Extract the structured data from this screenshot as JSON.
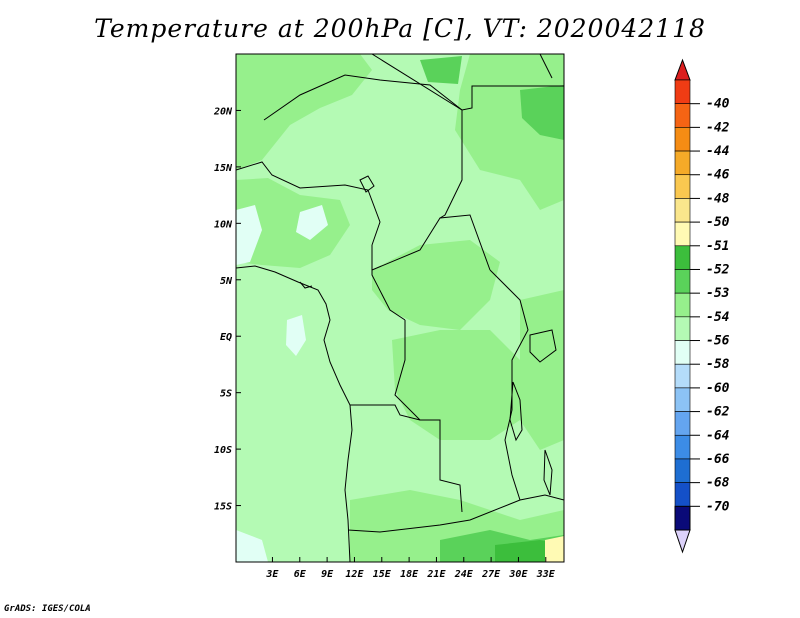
{
  "title": "Temperature at 200hPa [C], VT: 2020042118",
  "credit": "GrADS: IGES/COLA",
  "map": {
    "lon_range": [
      -1,
      35
    ],
    "lat_range": [
      -20,
      25
    ],
    "x_ticks": [
      {
        "value": 3,
        "label": "3E"
      },
      {
        "value": 6,
        "label": "6E"
      },
      {
        "value": 9,
        "label": "9E"
      },
      {
        "value": 12,
        "label": "12E"
      },
      {
        "value": 15,
        "label": "15E"
      },
      {
        "value": 18,
        "label": "18E"
      },
      {
        "value": 21,
        "label": "21E"
      },
      {
        "value": 24,
        "label": "24E"
      },
      {
        "value": 27,
        "label": "27E"
      },
      {
        "value": 30,
        "label": "30E"
      },
      {
        "value": 33,
        "label": "33E"
      }
    ],
    "y_ticks": [
      {
        "value": 20,
        "label": "20N"
      },
      {
        "value": 15,
        "label": "15N"
      },
      {
        "value": 10,
        "label": "10N"
      },
      {
        "value": 5,
        "label": "5N"
      },
      {
        "value": 0,
        "label": "EQ"
      },
      {
        "value": -5,
        "label": "5S"
      },
      {
        "value": -10,
        "label": "10S"
      },
      {
        "value": -15,
        "label": "15S"
      }
    ]
  },
  "colorbar": {
    "levels": [
      {
        "label": "-40",
        "color": "#f03c14"
      },
      {
        "label": "-42",
        "color": "#f56414"
      },
      {
        "label": "-44",
        "color": "#f58c14"
      },
      {
        "label": "-46",
        "color": "#f5aa28"
      },
      {
        "label": "-48",
        "color": "#fac850"
      },
      {
        "label": "-50",
        "color": "#fae68c"
      },
      {
        "label": "-51",
        "color": "#fffab4"
      },
      {
        "label": "-52",
        "color": "#3cbe3c"
      },
      {
        "label": "-53",
        "color": "#5ad25a"
      },
      {
        "label": "-54",
        "color": "#96f08c"
      },
      {
        "label": "-56",
        "color": "#b4fab4"
      },
      {
        "label": "-58",
        "color": "#e1fff5"
      },
      {
        "label": "-60",
        "color": "#b4dcfa"
      },
      {
        "label": "-62",
        "color": "#8cc3f5"
      },
      {
        "label": "-64",
        "color": "#64a5f0"
      },
      {
        "label": "-66",
        "color": "#3c8ce6"
      },
      {
        "label": "-68",
        "color": "#1e6ed2"
      },
      {
        "label": "-70",
        "color": "#1450c8"
      }
    ],
    "top_triangle_color": "#dc1e1e",
    "bottom_triangle_color": "#dcd2fa",
    "bottom_block_color": "#0a0a78"
  },
  "field_colors": {
    "base": "#b4fab4",
    "mid": "#96f08c",
    "dark": "#5ad25a",
    "darkest": "#3cbe3c",
    "cold": "#e1fff5",
    "warm": "#fffab4"
  }
}
